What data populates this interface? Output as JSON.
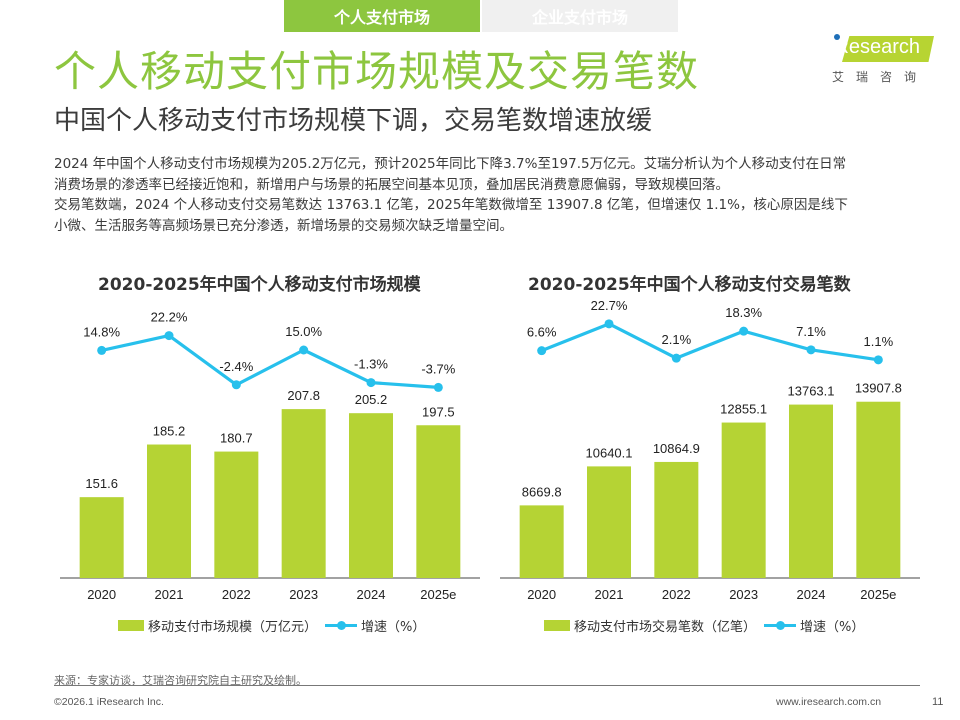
{
  "tabs": [
    {
      "label": "个人支付市场",
      "active": true
    },
    {
      "label": "企业支付市场",
      "active": false
    }
  ],
  "header": {
    "title": "个人移动支付市场规模及交易笔数",
    "subtitle": "中国个人移动支付市场规模下调，交易笔数增速放缓"
  },
  "logo": {
    "brand": "iResearch",
    "cn": "艾瑞咨询"
  },
  "summary": [
    "2024 年中国个人移动支付市场规模为205.2万亿元，预计2025年同比下降3.7%至197.5万亿元。艾瑞分析认为个人移动支付在日常",
    "消费场景的渗透率已经接近饱和，新增用户与场景的拓展空间基本见顶，叠加居民消费意愿偏弱，导致规模回落。",
    "交易笔数端，2024 个人移动支付交易笔数达 13763.1 亿笔，2025年笔数微增至 13907.8 亿笔，但增速仅 1.1%，核心原因是线下",
    "小微、生活服务等高频场景已充分渗透，新增场景的交易频次缺乏增量空间。"
  ],
  "colors": {
    "accent": "#8dc63f",
    "bar": "#b5d334",
    "line": "#27c0ec",
    "text": "#333333"
  },
  "chart_data": [
    {
      "type": "bar",
      "title": "2020-2025年中国个人移动支付市场规模",
      "categories": [
        "2020",
        "2021",
        "2022",
        "2023",
        "2024",
        "2025e"
      ],
      "series": [
        {
          "name": "移动支付市场规模（万亿元）",
          "type": "bar",
          "values": [
            151.6,
            185.2,
            180.7,
            207.8,
            205.2,
            197.5
          ],
          "labels": [
            "151.6",
            "185.2",
            "180.7",
            "207.8",
            "205.2",
            "197.5"
          ]
        },
        {
          "name": "增速（%）",
          "type": "line",
          "values": [
            14.8,
            22.2,
            -2.4,
            15.0,
            -1.3,
            -3.7
          ],
          "labels": [
            "14.8%",
            "22.2%",
            "-2.4%",
            "15.0%",
            "-1.3%",
            "-3.7%"
          ]
        }
      ],
      "bar_ylim": [
        100,
        220
      ],
      "line_ylim": [
        -5,
        25
      ],
      "xlabel": "",
      "ylabel": "",
      "grid": false,
      "legend": "bottom"
    },
    {
      "type": "bar",
      "title": "2020-2025年中国个人移动支付交易笔数",
      "categories": [
        "2020",
        "2021",
        "2022",
        "2023",
        "2024",
        "2025e"
      ],
      "series": [
        {
          "name": "移动支付市场交易笔数（亿笔）",
          "type": "bar",
          "values": [
            8669.8,
            10640.1,
            10864.9,
            12855.1,
            13763.1,
            13907.8
          ],
          "labels": [
            "8669.8",
            "10640.1",
            "10864.9",
            "12855.1",
            "13763.1",
            "13907.8"
          ]
        },
        {
          "name": "增速（%）",
          "type": "line",
          "values": [
            6.6,
            22.7,
            2.1,
            18.3,
            7.1,
            1.1
          ],
          "labels": [
            "6.6%",
            "22.7%",
            "2.1%",
            "18.3%",
            "7.1%",
            "1.1%"
          ]
        }
      ],
      "bar_ylim": [
        5000,
        14500
      ],
      "line_ylim": [
        -5,
        25
      ],
      "xlabel": "",
      "ylabel": "",
      "grid": false,
      "legend": "bottom"
    }
  ],
  "legends": [
    {
      "bar": "移动支付市场规模（万亿元）",
      "line": "增速（%）"
    },
    {
      "bar": "移动支付市场交易笔数（亿笔）",
      "line": "增速（%）"
    }
  ],
  "footer": {
    "source": "来源：专家访谈，艾瑞咨询研究院自主研究及绘制。",
    "copyright": "©2026.1 iResearch Inc.",
    "url": "www.iresearch.com.cn",
    "page": "11"
  }
}
